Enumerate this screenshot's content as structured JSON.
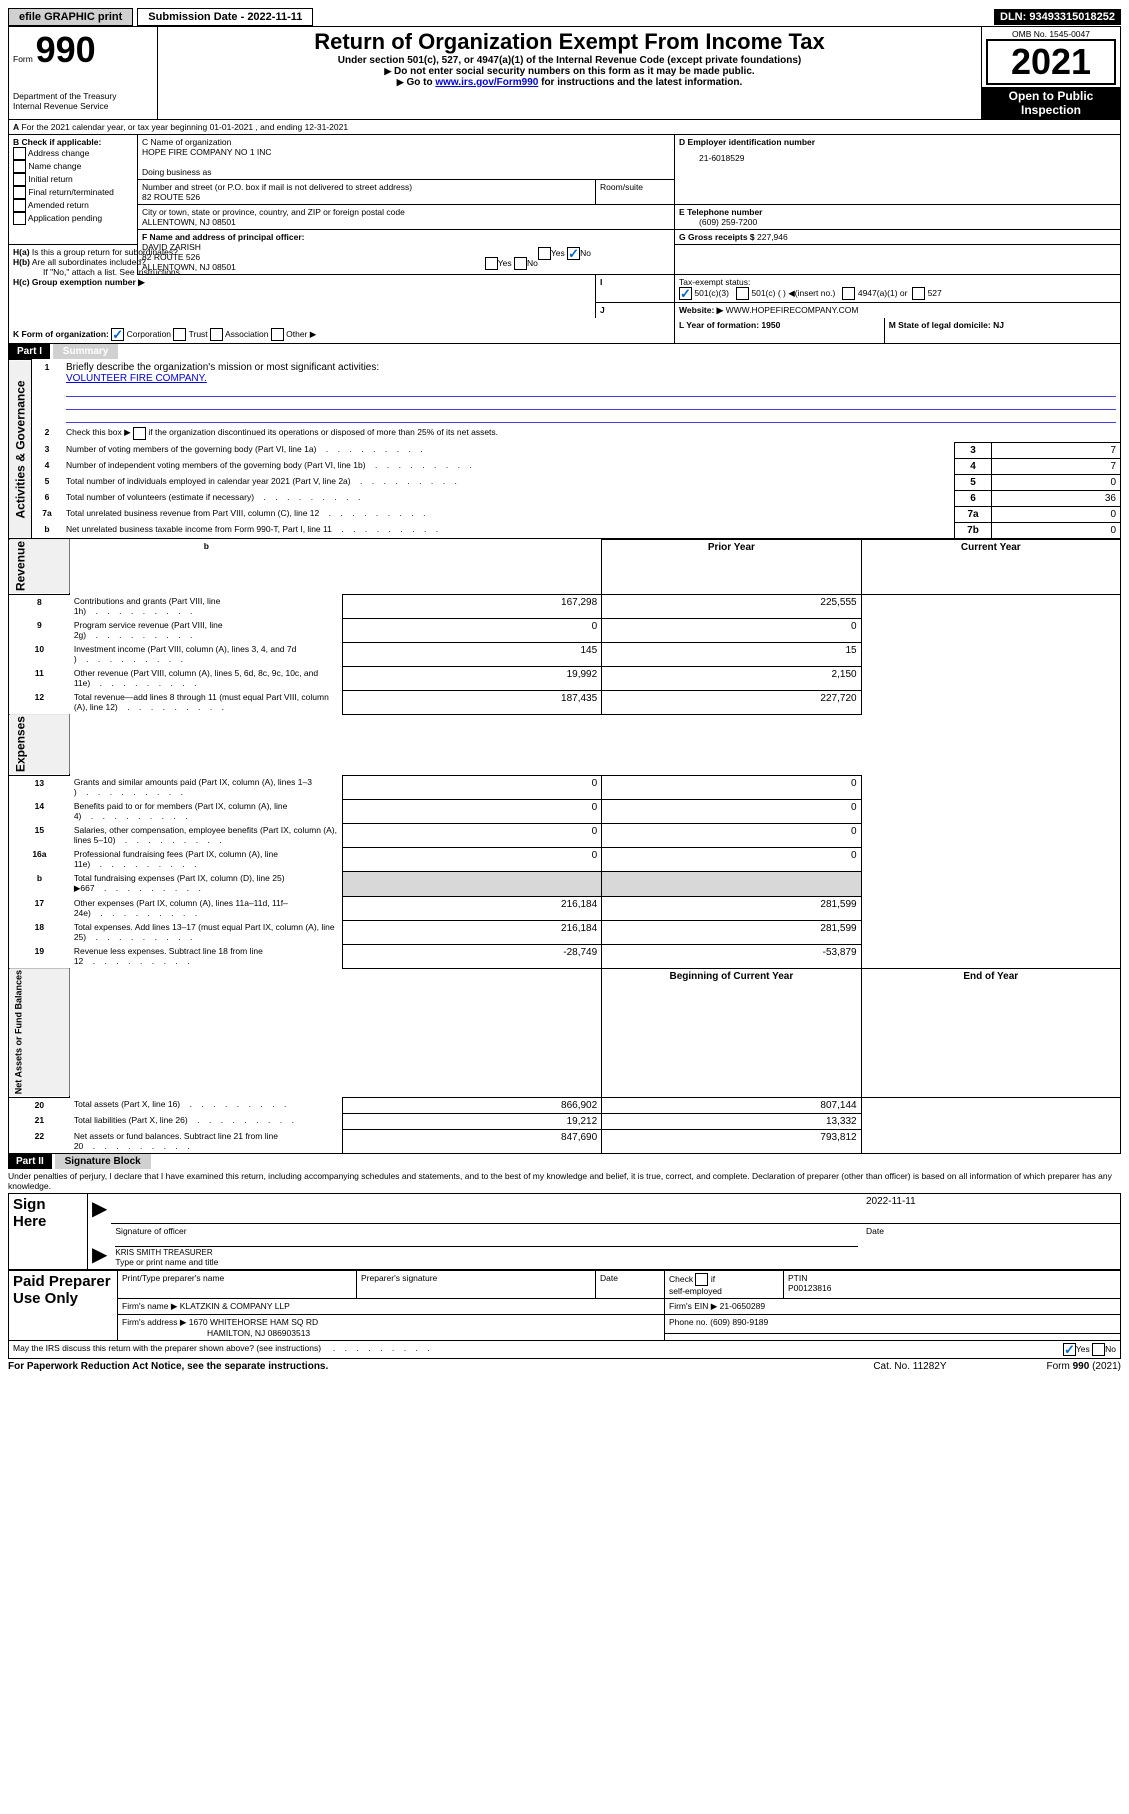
{
  "top": {
    "efile": "efile GRAPHIC print",
    "submission_date_label": "Submission Date - 2022-11-11",
    "dln": "DLN: 93493315018252"
  },
  "header": {
    "form_prefix": "Form",
    "form_num": "990",
    "title": "Return of Organization Exempt From Income Tax",
    "subtitle": "Under section 501(c), 527, or 4947(a)(1) of the Internal Revenue Code (except private foundations)",
    "warn1": "Do not enter social security numbers on this form as it may be made public.",
    "warn2_prefix": "Go to ",
    "warn2_link": "www.irs.gov/Form990",
    "warn2_suffix": " for instructions and the latest information.",
    "dept": "Department of the Treasury",
    "irs": "Internal Revenue Service",
    "omb": "OMB No. 1545-0047",
    "year": "2021",
    "open": "Open to Public Inspection"
  },
  "sectionA": {
    "line": "For the 2021 calendar year, or tax year beginning 01-01-2021    , and ending 12-31-2021",
    "B_label": "B Check if applicable:",
    "B_opts": [
      "Address change",
      "Name change",
      "Initial return",
      "Final return/terminated",
      "Amended return",
      "Application pending"
    ],
    "C_name_label": "C Name of organization",
    "C_name": "HOPE FIRE COMPANY NO 1 INC",
    "dba_label": "Doing business as",
    "street_label": "Number and street (or P.O. box if mail is not delivered to street address)",
    "room_label": "Room/suite",
    "street": "82 ROUTE 526",
    "city_label": "City or town, state or province, country, and ZIP or foreign postal code",
    "city": "ALLENTOWN, NJ  08501",
    "D_label": "D Employer identification number",
    "D_value": "21-6018529",
    "E_label": "E Telephone number",
    "E_value": "(609) 259-7200",
    "G_label": "G Gross receipts $",
    "G_value": "227,946",
    "F_label": "F  Name and address of principal officer:",
    "F_lines": [
      "DAVID ZARISH",
      "82 ROUTE 526",
      "ALLENTOWN, NJ  08501"
    ],
    "Ha_label": "H(a)  Is this a group return for subordinates?",
    "Hb_label": "H(b)  Are all subordinates included?",
    "Hb_note": "If \"No,\" attach a list. See instructions.",
    "Hc_label": "H(c)  Group exemption number ▶",
    "yes": "Yes",
    "no": "No",
    "I_label": "Tax-exempt status:",
    "I_opts": [
      "501(c)(3)",
      "501(c) (   ) ◀(insert no.)",
      "4947(a)(1) or",
      "527"
    ],
    "J_label": "Website: ▶",
    "J_value": "WWW.HOPEFIRECOMPANY.COM",
    "K_label": "K Form of organization:",
    "K_opts": [
      "Corporation",
      "Trust",
      "Association",
      "Other ▶"
    ],
    "L_label": "L Year of formation: 1950",
    "M_label": "M State of legal domicile: NJ"
  },
  "part1": {
    "title": "Part I",
    "subtitle": "Summary",
    "line1_label": "Briefly describe the organization's mission or most significant activities:",
    "line1_text": "VOLUNTEER FIRE COMPANY.",
    "line2": "Check this box ▶        if the organization discontinued its operations or disposed of more than 25% of its net assets.",
    "rows": [
      {
        "n": "3",
        "t": "Number of voting members of the governing body (Part VI, line 1a)",
        "c": "3",
        "v": "7"
      },
      {
        "n": "4",
        "t": "Number of independent voting members of the governing body (Part VI, line 1b)",
        "c": "4",
        "v": "7"
      },
      {
        "n": "5",
        "t": "Total number of individuals employed in calendar year 2021 (Part V, line 2a)",
        "c": "5",
        "v": "0"
      },
      {
        "n": "6",
        "t": "Total number of volunteers (estimate if necessary)",
        "c": "6",
        "v": "36"
      },
      {
        "n": "7a",
        "t": "Total unrelated business revenue from Part VIII, column (C), line 12",
        "c": "7a",
        "v": "0"
      },
      {
        "n": "b",
        "t": "Net unrelated business taxable income from Form 990-T, Part I, line 11",
        "c": "7b",
        "v": "0"
      }
    ],
    "prior_label": "Prior Year",
    "current_label": "Current Year",
    "rev_rows": [
      {
        "n": "8",
        "t": "Contributions and grants (Part VIII, line 1h)",
        "p": "167,298",
        "c": "225,555"
      },
      {
        "n": "9",
        "t": "Program service revenue (Part VIII, line 2g)",
        "p": "0",
        "c": "0"
      },
      {
        "n": "10",
        "t": "Investment income (Part VIII, column (A), lines 3, 4, and 7d )",
        "p": "145",
        "c": "15"
      },
      {
        "n": "11",
        "t": "Other revenue (Part VIII, column (A), lines 5, 6d, 8c, 9c, 10c, and 11e)",
        "p": "19,992",
        "c": "2,150"
      },
      {
        "n": "12",
        "t": "Total revenue—add lines 8 through 11 (must equal Part VIII, column (A), line 12)",
        "p": "187,435",
        "c": "227,720"
      }
    ],
    "exp_rows": [
      {
        "n": "13",
        "t": "Grants and similar amounts paid (Part IX, column (A), lines 1–3 )",
        "p": "0",
        "c": "0"
      },
      {
        "n": "14",
        "t": "Benefits paid to or for members (Part IX, column (A), line 4)",
        "p": "0",
        "c": "0"
      },
      {
        "n": "15",
        "t": "Salaries, other compensation, employee benefits (Part IX, column (A), lines 5–10)",
        "p": "0",
        "c": "0"
      },
      {
        "n": "16a",
        "t": "Professional fundraising fees (Part IX, column (A), line 11e)",
        "p": "0",
        "c": "0"
      },
      {
        "n": "b",
        "t": "Total fundraising expenses (Part IX, column (D), line 25) ▶667",
        "p": "",
        "c": "",
        "shaded": true
      },
      {
        "n": "17",
        "t": "Other expenses (Part IX, column (A), lines 11a–11d, 11f–24e)",
        "p": "216,184",
        "c": "281,599"
      },
      {
        "n": "18",
        "t": "Total expenses. Add lines 13–17 (must equal Part IX, column (A), line 25)",
        "p": "216,184",
        "c": "281,599"
      },
      {
        "n": "19",
        "t": "Revenue less expenses. Subtract line 18 from line 12",
        "p": "-28,749",
        "c": "-53,879"
      }
    ],
    "begin_label": "Beginning of Current Year",
    "end_label": "End of Year",
    "net_rows": [
      {
        "n": "20",
        "t": "Total assets (Part X, line 16)",
        "p": "866,902",
        "c": "807,144"
      },
      {
        "n": "21",
        "t": "Total liabilities (Part X, line 26)",
        "p": "19,212",
        "c": "13,332"
      },
      {
        "n": "22",
        "t": "Net assets or fund balances. Subtract line 21 from line 20",
        "p": "847,690",
        "c": "793,812"
      }
    ],
    "vert_gov": "Activities & Governance",
    "vert_rev": "Revenue",
    "vert_exp": "Expenses",
    "vert_net": "Net Assets or Fund Balances"
  },
  "part2": {
    "title": "Part II",
    "subtitle": "Signature Block",
    "penalties": "Under penalties of perjury, I declare that I have examined this return, including accompanying schedules and statements, and to the best of my knowledge and belief, it is true, correct, and complete. Declaration of preparer (other than officer) is based on all information of which preparer has any knowledge.",
    "sign_here": "Sign Here",
    "sig_officer": "Signature of officer",
    "sig_date_val": "2022-11-11",
    "sig_date_label": "Date",
    "officer_name": "KRIS SMITH  TREASURER",
    "officer_name_label": "Type or print name and title",
    "paid_label": "Paid Preparer Use Only",
    "prep_name_label": "Print/Type preparer's name",
    "prep_sig_label": "Preparer's signature",
    "date_label": "Date",
    "self_emp": "Check        if self-employed",
    "ptin_label": "PTIN",
    "ptin": "P00123816",
    "firm_name_label": "Firm's name    ▶",
    "firm_name": "KLATZKIN & COMPANY LLP",
    "firm_ein_label": "Firm's EIN ▶",
    "firm_ein": "21-0650289",
    "firm_addr_label": "Firm's address ▶",
    "firm_addr1": "1670 WHITEHORSE HAM SQ RD",
    "firm_addr2": "HAMILTON, NJ  086903513",
    "phone_label": "Phone no.",
    "phone": "(609) 890-9189",
    "may_irs": "May the IRS discuss this return with the preparer shown above? (see instructions)",
    "paperwork": "For Paperwork Reduction Act Notice, see the separate instructions.",
    "cat": "Cat. No. 11282Y",
    "form_foot": "Form 990 (2021)"
  }
}
